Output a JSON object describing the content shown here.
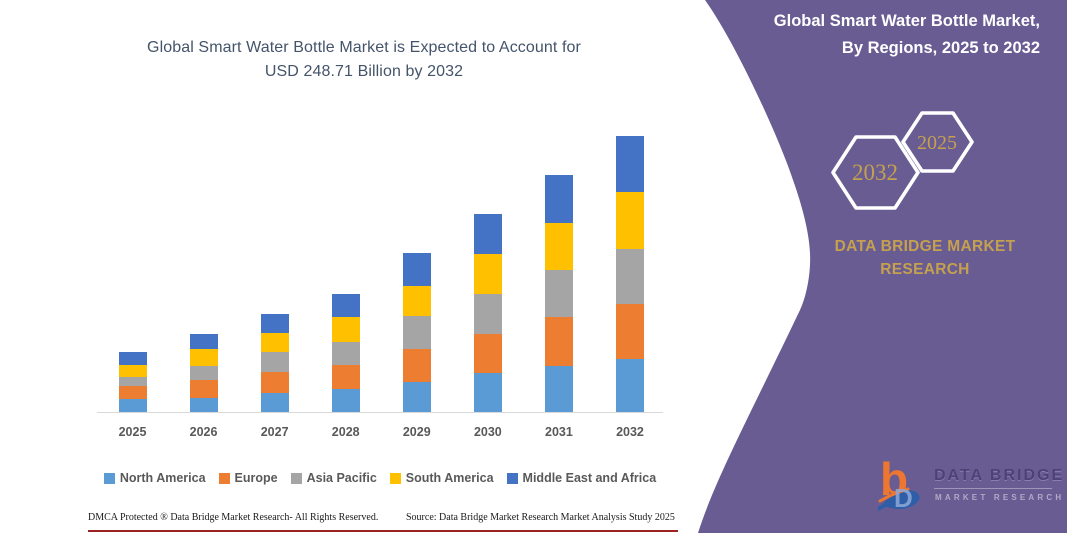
{
  "chart_title": {
    "line1": "Global Smart Water Bottle Market is Expected to Account for",
    "line2": "USD 248.71 Billion by 2032"
  },
  "chart_data": {
    "type": "bar",
    "stacked": true,
    "title": "Global Smart Water Bottle Market is Expected to Account for USD 248.71 Billion by 2032",
    "unit": "USD Billion",
    "categories": [
      "2025",
      "2026",
      "2027",
      "2028",
      "2029",
      "2030",
      "2031",
      "2032"
    ],
    "series": [
      {
        "name": "North America",
        "color": "#5B9BD5",
        "values": [
          12.0,
          13.0,
          17.0,
          20.8,
          27.4,
          35.2,
          41.2,
          48.1
        ]
      },
      {
        "name": "Europe",
        "color": "#ED7D31",
        "values": [
          11.5,
          15.5,
          18.7,
          21.7,
          29.5,
          35.2,
          44.2,
          49.3
        ]
      },
      {
        "name": "Asia Pacific",
        "color": "#A5A5A5",
        "values": [
          8.5,
          13.0,
          18.0,
          20.5,
          29.5,
          35.5,
          43.0,
          49.9
        ]
      },
      {
        "name": "South America",
        "color": "#FFC000",
        "values": [
          10.0,
          15.0,
          17.2,
          22.5,
          27.7,
          36.7,
          42.1,
          50.8
        ]
      },
      {
        "name": "Middle East and Africa",
        "color": "#4472C4",
        "values": [
          12.0,
          14.2,
          17.5,
          21.0,
          29.5,
          35.5,
          43.0,
          50.6
        ]
      }
    ],
    "totals": [
      54.0,
      70.7,
      88.4,
      106.5,
      143.6,
      178.1,
      213.5,
      248.71
    ],
    "ylim": [
      0,
      255
    ],
    "grid": false,
    "axis_line_color": "#D9D9D9",
    "legend_position": "bottom"
  },
  "panel": {
    "title_line1": "Global Smart Water Bottle Market,",
    "title_line2": "By Regions, 2025 to 2032",
    "hexagon_back_label": "2032",
    "hexagon_front_label": "2025",
    "brand_line1": "DATA BRIDGE MARKET",
    "brand_line2": "RESEARCH",
    "panel_color": "#685C93",
    "gold_color": "#C5A04E",
    "logo_text_top": "DATA BRIDGE",
    "logo_text_bottom": "MARKET RESEARCH"
  },
  "footer": {
    "dmca": "DMCA Protected ® Data Bridge Market Research-  All Rights Reserved.",
    "source": "Source: Data Bridge Market Research  Market Analysis Study 2025",
    "divider_color": "#9C2222"
  }
}
